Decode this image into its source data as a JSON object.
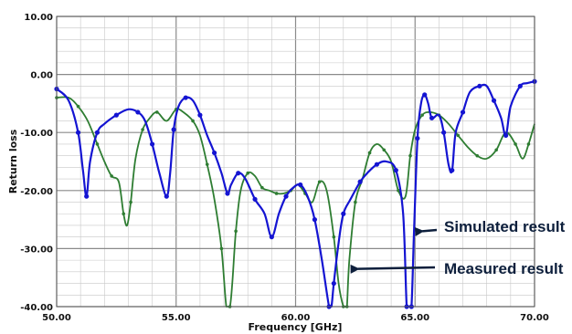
{
  "chart_data": {
    "type": "line",
    "xlabel": "Frequency  [GHz]",
    "ylabel": "Return loss",
    "xlim": [
      50,
      70
    ],
    "ylim": [
      -40,
      10
    ],
    "x_ticks": [
      "50.00",
      "55.00",
      "60.00",
      "65.00",
      "70.00"
    ],
    "y_ticks": [
      "10.00",
      "0.00",
      "-10.00",
      "-20.00",
      "-30.00",
      "-40.00"
    ],
    "grid": true,
    "colors": {
      "simulated": "#1414d2",
      "measured": "#2e7d32",
      "arrow": "#0d1f3c",
      "grid": "#c8c8c8"
    },
    "series": [
      {
        "name": "Simulated result",
        "x": [
          50.0,
          50.5,
          50.9,
          51.1,
          51.25,
          51.4,
          51.7,
          52.0,
          52.5,
          53.0,
          53.4,
          53.7,
          54.0,
          54.3,
          54.6,
          54.75,
          54.9,
          55.1,
          55.4,
          55.7,
          56.0,
          56.3,
          56.6,
          56.9,
          57.15,
          57.3,
          57.6,
          57.9,
          58.3,
          58.7,
          59.0,
          59.3,
          59.6,
          59.9,
          60.2,
          60.5,
          60.8,
          61.1,
          61.4,
          61.5,
          61.6,
          61.8,
          62.0,
          62.3,
          62.7,
          63.0,
          63.4,
          63.8,
          64.2,
          64.5,
          64.65,
          64.75,
          64.85,
          64.95,
          65.1,
          65.25,
          65.4,
          65.55,
          65.7,
          66.0,
          66.2,
          66.4,
          66.55,
          66.7,
          67.0,
          67.3,
          67.7,
          68.0,
          68.3,
          68.6,
          68.8,
          69.0,
          69.4,
          69.7,
          70.0
        ],
        "y": [
          -2.5,
          -4.5,
          -10.0,
          -16.5,
          -21.0,
          -15.0,
          -10.0,
          -8.5,
          -7.0,
          -6.0,
          -6.5,
          -8.0,
          -12.0,
          -17.0,
          -21.0,
          -17.0,
          -9.5,
          -5.5,
          -4.0,
          -4.5,
          -7.0,
          -10.5,
          -13.5,
          -17.0,
          -20.5,
          -19.0,
          -17.0,
          -18.0,
          -21.5,
          -24.0,
          -28.0,
          -24.0,
          -21.0,
          -19.5,
          -19.0,
          -21.0,
          -25.0,
          -32.0,
          -40.0,
          -40.0,
          -36.0,
          -29.0,
          -24.0,
          -21.5,
          -18.5,
          -17.0,
          -15.5,
          -15.0,
          -16.5,
          -24.0,
          -40.0,
          -40.0,
          -40.0,
          -28.0,
          -11.0,
          -5.0,
          -3.5,
          -5.0,
          -7.5,
          -7.0,
          -10.0,
          -15.5,
          -16.5,
          -10.0,
          -6.5,
          -3.0,
          -2.0,
          -2.0,
          -4.5,
          -7.5,
          -10.5,
          -5.5,
          -2.0,
          -1.5,
          -1.2
        ]
      },
      {
        "name": "Measured result",
        "x": [
          50.0,
          50.5,
          50.9,
          51.3,
          51.7,
          52.0,
          52.3,
          52.6,
          52.8,
          52.95,
          53.1,
          53.3,
          53.6,
          53.9,
          54.2,
          54.6,
          55.0,
          55.3,
          55.7,
          56.0,
          56.3,
          56.6,
          56.9,
          57.1,
          57.25,
          57.35,
          57.5,
          57.7,
          58.0,
          58.3,
          58.6,
          58.9,
          59.2,
          59.5,
          59.8,
          60.1,
          60.4,
          60.7,
          61.0,
          61.3,
          61.6,
          61.8,
          62.0,
          62.1,
          62.15,
          62.25,
          62.5,
          62.8,
          63.1,
          63.4,
          63.7,
          64.0,
          64.3,
          64.6,
          64.8,
          65.0,
          65.3,
          65.6,
          66.0,
          66.4,
          66.8,
          67.2,
          67.6,
          68.0,
          68.4,
          68.8,
          69.2,
          69.5,
          69.75,
          70.0
        ],
        "y": [
          -4.0,
          -4.0,
          -5.5,
          -8.0,
          -12.0,
          -15.0,
          -17.5,
          -18.5,
          -24.0,
          -26.0,
          -22.0,
          -14.5,
          -9.5,
          -7.5,
          -6.5,
          -8.0,
          -6.0,
          -6.5,
          -8.0,
          -10.5,
          -15.5,
          -21.5,
          -30.0,
          -40.0,
          -40.0,
          -36.0,
          -27.0,
          -20.0,
          -17.0,
          -17.5,
          -19.5,
          -20.0,
          -20.5,
          -20.5,
          -20.0,
          -19.0,
          -20.5,
          -22.0,
          -18.5,
          -20.0,
          -28.0,
          -36.0,
          -40.0,
          -40.0,
          -40.0,
          -32.0,
          -22.0,
          -18.0,
          -13.5,
          -12.0,
          -13.0,
          -15.0,
          -20.0,
          -21.0,
          -14.0,
          -9.5,
          -7.0,
          -6.5,
          -7.0,
          -8.5,
          -10.5,
          -12.5,
          -14.0,
          -14.5,
          -13.0,
          -10.0,
          -12.0,
          -14.5,
          -12.0,
          -8.5
        ]
      }
    ],
    "annotations": [
      {
        "text": "Simulated result",
        "target_x": 65.0,
        "target_y": -27.0
      },
      {
        "text": "Measured result",
        "target_x": 62.3,
        "target_y": -33.5
      }
    ]
  }
}
